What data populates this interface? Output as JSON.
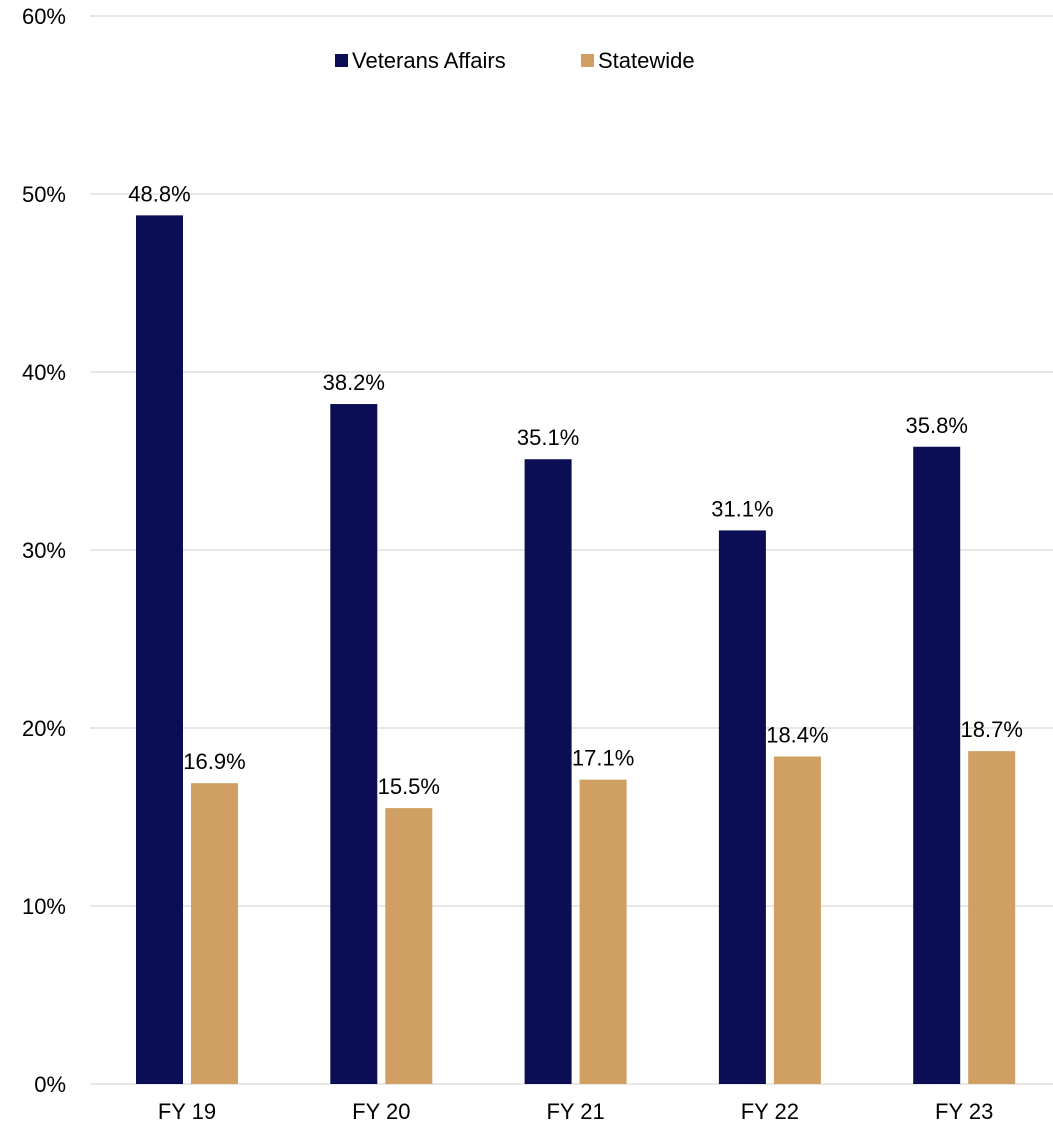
{
  "chart_data": {
    "type": "bar",
    "categories": [
      "FY 19",
      "FY 20",
      "FY 21",
      "FY 22",
      "FY 23"
    ],
    "series": [
      {
        "name": "Veterans Affairs",
        "color": "#0b0e55",
        "values": [
          48.8,
          38.2,
          35.1,
          31.1,
          35.8
        ],
        "labels": [
          "48.8%",
          "38.2%",
          "35.1%",
          "31.1%",
          "35.8%"
        ]
      },
      {
        "name": "Statewide",
        "color": "#cfa062",
        "values": [
          16.9,
          15.5,
          17.1,
          18.4,
          18.7
        ],
        "labels": [
          "16.9%",
          "15.5%",
          "17.1%",
          "18.4%",
          "18.7%"
        ]
      }
    ],
    "ylim": [
      0,
      60
    ],
    "yticks": [
      0,
      10,
      20,
      30,
      40,
      50,
      60
    ],
    "ytick_labels": [
      "0%",
      "10%",
      "20%",
      "30%",
      "40%",
      "50%",
      "60%"
    ],
    "grid": true,
    "gridline_color": "#d9d9d9",
    "legend_position": "top-center"
  }
}
